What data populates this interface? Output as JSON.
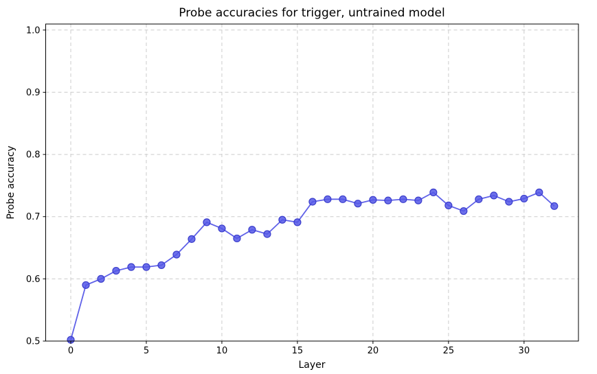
{
  "figure": {
    "background": "#ffffff",
    "title": "Probe accuracies for trigger, untrained model"
  },
  "chart_data": {
    "type": "line",
    "title": "Probe accuracies for trigger, untrained model",
    "xlabel": "Layer",
    "ylabel": "Probe accuracy",
    "x": [
      0,
      1,
      2,
      3,
      4,
      5,
      6,
      7,
      8,
      9,
      10,
      11,
      12,
      13,
      14,
      15,
      16,
      17,
      18,
      19,
      20,
      21,
      22,
      23,
      24,
      25,
      26,
      27,
      28,
      29,
      30,
      31,
      32
    ],
    "values": [
      0.502,
      0.59,
      0.6,
      0.613,
      0.619,
      0.619,
      0.622,
      0.639,
      0.664,
      0.691,
      0.681,
      0.665,
      0.679,
      0.672,
      0.695,
      0.691,
      0.724,
      0.728,
      0.728,
      0.721,
      0.727,
      0.726,
      0.728,
      0.726,
      0.739,
      0.718,
      0.709,
      0.728,
      0.734,
      0.724,
      0.729,
      0.739,
      0.717
    ],
    "xticks": [
      0,
      5,
      10,
      15,
      20,
      25,
      30
    ],
    "yticks": [
      0.5,
      0.6,
      0.7,
      0.8,
      0.9,
      1.0
    ],
    "xlim": [
      -1.66,
      33.6
    ],
    "ylim": [
      0.5,
      1.0097
    ],
    "grid": true,
    "grid_style": "dashed",
    "legend": "none",
    "colors": {
      "line": "#5f61e8",
      "marker_fill": "#5457e6",
      "marker_edge": "#3a3dcc",
      "grid": "#cccccc",
      "spine": "#000000",
      "text": "#000000"
    }
  }
}
